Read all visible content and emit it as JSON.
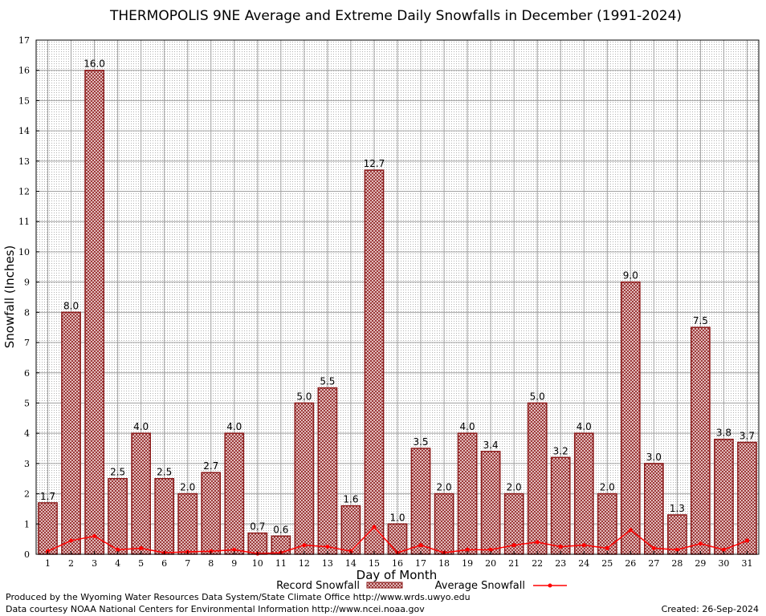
{
  "chart_data": {
    "type": "bar",
    "title": "THERMOPOLIS 9NE Average and Extreme Daily Snowfalls in December (1991-2024)",
    "xlabel": "Day of Month",
    "ylabel": "Snowfall (Inches)",
    "ylim": [
      0,
      17
    ],
    "yticks": [
      "0",
      "1",
      "2",
      "3",
      "4",
      "5",
      "6",
      "7",
      "8",
      "9",
      "10",
      "11",
      "12",
      "13",
      "14",
      "15",
      "16",
      "17"
    ],
    "grid": true,
    "legend_position": "bottom-center",
    "categories": [
      "1",
      "2",
      "3",
      "4",
      "5",
      "6",
      "7",
      "8",
      "9",
      "10",
      "11",
      "12",
      "13",
      "14",
      "15",
      "16",
      "17",
      "18",
      "19",
      "20",
      "21",
      "22",
      "23",
      "24",
      "25",
      "26",
      "27",
      "28",
      "29",
      "30",
      "31"
    ],
    "series": [
      {
        "name": "Record Snowfall",
        "type": "bar",
        "color": "#8b1a1a",
        "values": [
          1.7,
          8.0,
          16.0,
          2.5,
          4.0,
          2.5,
          2.0,
          2.7,
          4.0,
          0.7,
          0.6,
          5.0,
          5.5,
          1.6,
          12.7,
          1.0,
          3.5,
          2.0,
          4.0,
          3.4,
          2.0,
          5.0,
          3.2,
          4.0,
          2.0,
          9.0,
          3.0,
          1.3,
          7.5,
          3.8,
          3.7
        ],
        "labels": [
          "1.7",
          "8.0",
          "16.0",
          "2.5",
          "4.0",
          "2.5",
          "2.0",
          "2.7",
          "4.0",
          "0.7",
          "0.6",
          "5.0",
          "5.5",
          "1.6",
          "12.7",
          "1.0",
          "3.5",
          "2.0",
          "4.0",
          "3.4",
          "2.0",
          "5.0",
          "3.2",
          "4.0",
          "2.0",
          "9.0",
          "3.0",
          "1.3",
          "7.5",
          "3.8",
          "3.7"
        ]
      },
      {
        "name": "Average Snowfall",
        "type": "line",
        "color": "#ff0000",
        "values": [
          0.1,
          0.45,
          0.6,
          0.15,
          0.2,
          0.05,
          0.08,
          0.1,
          0.15,
          0.02,
          0.05,
          0.3,
          0.25,
          0.1,
          0.9,
          0.05,
          0.3,
          0.05,
          0.15,
          0.15,
          0.3,
          0.4,
          0.25,
          0.3,
          0.2,
          0.8,
          0.2,
          0.15,
          0.35,
          0.15,
          0.45
        ]
      }
    ]
  },
  "footer": {
    "line1": "Produced by the Wyoming Water Resources Data System/State Climate Office http://www.wrds.uwyo.edu",
    "line2": "Data courtesy NOAA National Centers for Environmental Information http://www.ncei.noaa.gov",
    "created": "Created:  26-Sep-2024"
  }
}
